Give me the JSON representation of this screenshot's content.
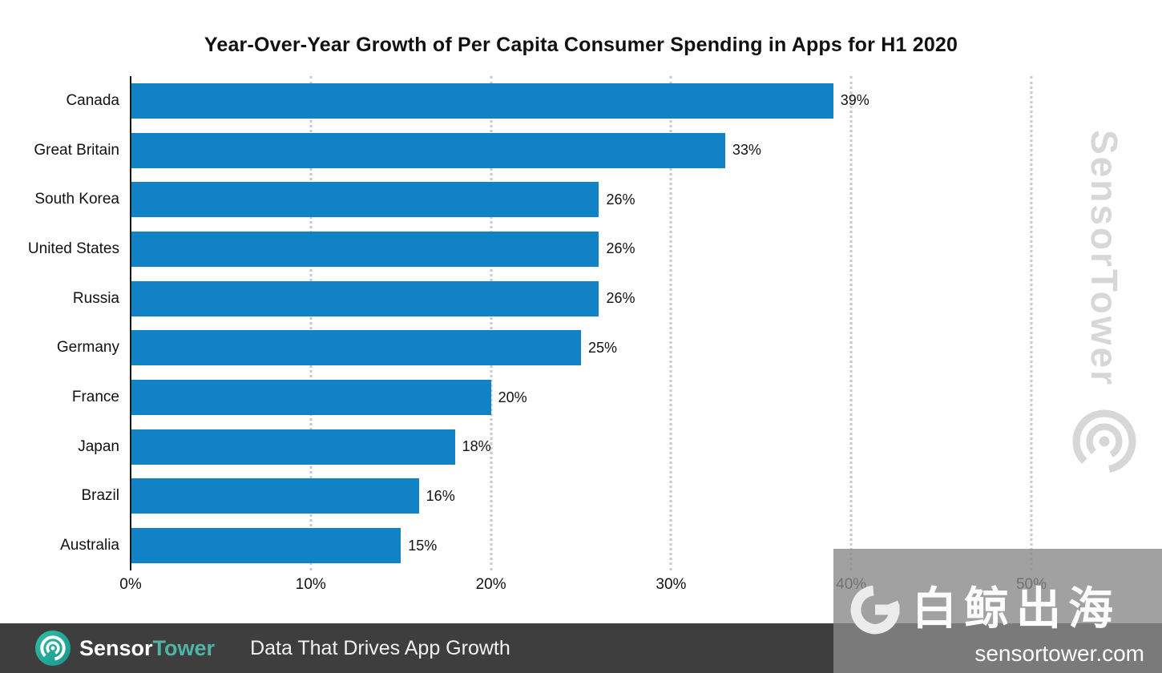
{
  "chart_data": {
    "type": "bar",
    "orientation": "horizontal",
    "title": "Year-Over-Year Growth of Per Capita Consumer Spending in Apps for H1 2020",
    "categories": [
      "Canada",
      "Great Britain",
      "South Korea",
      "United States",
      "Russia",
      "Germany",
      "France",
      "Japan",
      "Brazil",
      "Australia"
    ],
    "values": [
      39,
      33,
      26,
      26,
      26,
      25,
      20,
      18,
      16,
      15
    ],
    "value_labels": [
      "39%",
      "33%",
      "26%",
      "26%",
      "26%",
      "25%",
      "20%",
      "18%",
      "16%",
      "15%"
    ],
    "x_ticks": [
      "0%",
      "10%",
      "20%",
      "30%",
      "40%",
      "50%"
    ],
    "xlabel": "",
    "ylabel": "",
    "xlim": [
      0,
      50
    ],
    "grid": "dotted-vertical",
    "legend": "none",
    "bar_color": "#1182c5"
  },
  "watermark": {
    "text": "SensorTower"
  },
  "footer": {
    "brand_sensor": "Sensor",
    "brand_tower": "Tower",
    "tagline": "Data That Drives App Growth"
  },
  "overlay": {
    "brand_cn": "白鲸出海",
    "site": "sensortower.com"
  },
  "colors": {
    "bar": "#1182c5",
    "footer_bg": "#3e3e3e",
    "brand_teal": "#2fb1a3",
    "watermark_gray": "#d7d7d7"
  }
}
